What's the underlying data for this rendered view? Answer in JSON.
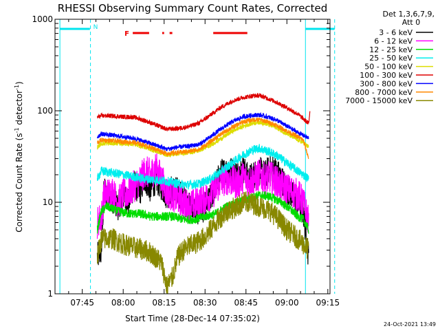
{
  "chart_data": {
    "type": "line",
    "title": "RHESSI Observing Summary Count Rates, Corrected",
    "xlabel": "Start Time (28-Dec-14 07:35:02)",
    "ylabel_main": "Corrected Count Rate (s",
    "ylabel_sup1": "-1",
    "ylabel_mid": " detector",
    "ylabel_sup2": "-1",
    "ylabel_end": ")",
    "y_scale": "log",
    "ylim": [
      1,
      1000
    ],
    "y_ticks": [
      {
        "value": 1,
        "label": "1"
      },
      {
        "value": 10,
        "label": "10"
      },
      {
        "value": 100,
        "label": "100"
      },
      {
        "value": 1000,
        "label": "1000"
      }
    ],
    "x_ticks": [
      {
        "value": 465,
        "label": "07:45"
      },
      {
        "value": 480,
        "label": "08:00"
      },
      {
        "value": 495,
        "label": "08:15"
      },
      {
        "value": 510,
        "label": "08:30"
      },
      {
        "value": 525,
        "label": "08:45"
      },
      {
        "value": 540,
        "label": "09:00"
      },
      {
        "value": 555,
        "label": "09:15"
      }
    ],
    "legend": {
      "placement": "right",
      "header_line1": "Det 1,3,6,7,9,",
      "header_line2": "Att 0",
      "entries": [
        {
          "label": "3 - 6 keV",
          "color": "#000000"
        },
        {
          "label": "6 - 12 keV",
          "color": "#ff00ff"
        },
        {
          "label": "12 - 25 keV",
          "color": "#00dd00"
        },
        {
          "label": "25 - 50 keV",
          "color": "#00eeee"
        },
        {
          "label": "50 - 100 keV",
          "color": "#dddd00"
        },
        {
          "label": "100 - 300 keV",
          "color": "#dd0000"
        },
        {
          "label": "300 - 800 keV",
          "color": "#0000ff"
        },
        {
          "label": "800 - 7000 keV",
          "color": "#ff8800"
        },
        {
          "label": "7000 - 15000 keV",
          "color": "#888800"
        }
      ]
    },
    "night_marker": {
      "label": "N",
      "color": "#00e5ee",
      "segments": [
        [
          456.8,
          468.0
        ],
        [
          555.5,
          555.6
        ]
      ],
      "bands": [
        {
          "solid_x": 456.8,
          "dashed_x": 468.0,
          "bar": [
            456.8,
            467.8
          ]
        },
        {
          "solid_x": 546.8,
          "dashed_x": 557.5,
          "bar": [
            546.8,
            557.5
          ]
        }
      ]
    },
    "flare_marker": {
      "label": "F",
      "color": "#ee0000",
      "segments": [
        [
          483.5,
          489.5
        ],
        [
          494.3,
          495.0
        ],
        [
          497.0,
          498.0
        ],
        [
          513.0,
          525.5
        ]
      ]
    },
    "series": [
      {
        "name": "3 - 6 keV",
        "color": "#000000",
        "x0": 470.5,
        "x1": 548.0,
        "points": [
          [
            470.5,
            2.5
          ],
          [
            472,
            3.0
          ],
          [
            473,
            14
          ],
          [
            476,
            11
          ],
          [
            478,
            9
          ],
          [
            480,
            12
          ],
          [
            482,
            10
          ],
          [
            484,
            16
          ],
          [
            486,
            13
          ],
          [
            488,
            18
          ],
          [
            490,
            14
          ],
          [
            492,
            18
          ],
          [
            494,
            15
          ],
          [
            496,
            12
          ],
          [
            498,
            14
          ],
          [
            500,
            13
          ],
          [
            502,
            11
          ],
          [
            504,
            9
          ],
          [
            506,
            8.5
          ],
          [
            508,
            8
          ],
          [
            510,
            9
          ],
          [
            512,
            11
          ],
          [
            514,
            16
          ],
          [
            516,
            21
          ],
          [
            518,
            22
          ],
          [
            520,
            22
          ],
          [
            522,
            20
          ],
          [
            524,
            23
          ],
          [
            526,
            18
          ],
          [
            528,
            20
          ],
          [
            530,
            22
          ],
          [
            532,
            20
          ],
          [
            534,
            24
          ],
          [
            536,
            22
          ],
          [
            538,
            18
          ],
          [
            540,
            14
          ],
          [
            542,
            12
          ],
          [
            544,
            10
          ],
          [
            546,
            8
          ],
          [
            548,
            2.5
          ]
        ],
        "noise": 0.16
      },
      {
        "name": "6 - 12 keV",
        "color": "#ff00ff",
        "x0": 470.5,
        "x1": 548.0,
        "points": [
          [
            470.5,
            6
          ],
          [
            472,
            7
          ],
          [
            473,
            12
          ],
          [
            476,
            13
          ],
          [
            478,
            10
          ],
          [
            480,
            12
          ],
          [
            482,
            13
          ],
          [
            484,
            15
          ],
          [
            486,
            17
          ],
          [
            488,
            22
          ],
          [
            490,
            20
          ],
          [
            492,
            24
          ],
          [
            494,
            18
          ],
          [
            496,
            13
          ],
          [
            498,
            12
          ],
          [
            500,
            11
          ],
          [
            502,
            10
          ],
          [
            504,
            9
          ],
          [
            506,
            9.5
          ],
          [
            508,
            10
          ],
          [
            510,
            11
          ],
          [
            512,
            12
          ],
          [
            514,
            14
          ],
          [
            516,
            17
          ],
          [
            518,
            18
          ],
          [
            520,
            17
          ],
          [
            522,
            16
          ],
          [
            524,
            19
          ],
          [
            526,
            17
          ],
          [
            528,
            18
          ],
          [
            530,
            20
          ],
          [
            532,
            18
          ],
          [
            534,
            19
          ],
          [
            536,
            17
          ],
          [
            538,
            15
          ],
          [
            540,
            14
          ],
          [
            542,
            13
          ],
          [
            544,
            12
          ],
          [
            546,
            10
          ],
          [
            548,
            6
          ]
        ],
        "noise": 0.18
      },
      {
        "name": "12 - 25 keV",
        "color": "#00dd00",
        "x0": 470.5,
        "x1": 548.0,
        "points": [
          [
            470.5,
            5
          ],
          [
            472,
            8
          ],
          [
            474,
            9
          ],
          [
            478,
            8
          ],
          [
            482,
            7.5
          ],
          [
            486,
            7.5
          ],
          [
            490,
            7
          ],
          [
            494,
            7
          ],
          [
            498,
            7
          ],
          [
            502,
            6.5
          ],
          [
            506,
            6.5
          ],
          [
            510,
            7
          ],
          [
            514,
            7.5
          ],
          [
            518,
            9
          ],
          [
            522,
            10
          ],
          [
            526,
            11
          ],
          [
            530,
            12
          ],
          [
            534,
            11.5
          ],
          [
            538,
            10
          ],
          [
            542,
            8
          ],
          [
            544,
            7
          ],
          [
            546,
            6.5
          ],
          [
            548,
            5
          ]
        ],
        "noise": 0.05
      },
      {
        "name": "25 - 50 keV",
        "color": "#00eeee",
        "x0": 470.5,
        "x1": 548.0,
        "points": [
          [
            470.5,
            18
          ],
          [
            472,
            22
          ],
          [
            476,
            21
          ],
          [
            480,
            20
          ],
          [
            484,
            19
          ],
          [
            488,
            18
          ],
          [
            492,
            17.5
          ],
          [
            496,
            17
          ],
          [
            500,
            16
          ],
          [
            504,
            15.5
          ],
          [
            508,
            16
          ],
          [
            512,
            18
          ],
          [
            516,
            22
          ],
          [
            520,
            27
          ],
          [
            524,
            33
          ],
          [
            528,
            38
          ],
          [
            530,
            39
          ],
          [
            532,
            37
          ],
          [
            536,
            33
          ],
          [
            540,
            27
          ],
          [
            544,
            22
          ],
          [
            546,
            20
          ],
          [
            548,
            18
          ]
        ],
        "noise": 0.05
      },
      {
        "name": "50 - 100 keV",
        "color": "#dddd00",
        "x0": 470.5,
        "x1": 548.0,
        "points": [
          [
            470.5,
            40
          ],
          [
            472,
            44
          ],
          [
            476,
            44
          ],
          [
            480,
            44
          ],
          [
            484,
            43
          ],
          [
            488,
            40
          ],
          [
            492,
            36
          ],
          [
            496,
            33
          ],
          [
            500,
            34
          ],
          [
            504,
            35
          ],
          [
            508,
            37
          ],
          [
            512,
            42
          ],
          [
            516,
            50
          ],
          [
            520,
            60
          ],
          [
            524,
            68
          ],
          [
            528,
            74
          ],
          [
            530,
            75
          ],
          [
            532,
            73
          ],
          [
            536,
            66
          ],
          [
            540,
            56
          ],
          [
            544,
            48
          ],
          [
            546,
            45
          ],
          [
            548,
            40
          ]
        ],
        "noise": 0.025
      },
      {
        "name": "100 - 300 keV",
        "color": "#dd0000",
        "x0": 470.5,
        "x1": 548.5,
        "points": [
          [
            470.5,
            85
          ],
          [
            472,
            88
          ],
          [
            476,
            88
          ],
          [
            480,
            86
          ],
          [
            484,
            85
          ],
          [
            488,
            78
          ],
          [
            492,
            70
          ],
          [
            496,
            63
          ],
          [
            500,
            64
          ],
          [
            504,
            67
          ],
          [
            508,
            74
          ],
          [
            512,
            90
          ],
          [
            516,
            110
          ],
          [
            520,
            128
          ],
          [
            524,
            140
          ],
          [
            528,
            146
          ],
          [
            530,
            147
          ],
          [
            532,
            140
          ],
          [
            536,
            125
          ],
          [
            540,
            108
          ],
          [
            544,
            92
          ],
          [
            546,
            82
          ],
          [
            548,
            72
          ],
          [
            548.5,
            105
          ]
        ],
        "noise": 0.025
      },
      {
        "name": "300 - 800 keV",
        "color": "#0000ff",
        "x0": 470.5,
        "x1": 548.0,
        "points": [
          [
            470.5,
            52
          ],
          [
            472,
            56
          ],
          [
            476,
            54
          ],
          [
            480,
            52
          ],
          [
            484,
            50
          ],
          [
            488,
            46
          ],
          [
            492,
            42
          ],
          [
            496,
            38
          ],
          [
            500,
            40
          ],
          [
            504,
            41
          ],
          [
            508,
            43
          ],
          [
            512,
            52
          ],
          [
            516,
            64
          ],
          [
            520,
            76
          ],
          [
            524,
            86
          ],
          [
            528,
            90
          ],
          [
            530,
            90
          ],
          [
            532,
            87
          ],
          [
            536,
            80
          ],
          [
            540,
            68
          ],
          [
            544,
            58
          ],
          [
            546,
            54
          ],
          [
            548,
            50
          ]
        ],
        "noise": 0.025
      },
      {
        "name": "800 - 7000 keV",
        "color": "#ff8800",
        "x0": 470.5,
        "x1": 548.0,
        "points": [
          [
            470.5,
            45
          ],
          [
            472,
            48
          ],
          [
            476,
            47
          ],
          [
            480,
            46
          ],
          [
            484,
            45
          ],
          [
            488,
            42
          ],
          [
            492,
            38
          ],
          [
            496,
            34
          ],
          [
            500,
            35
          ],
          [
            504,
            36
          ],
          [
            508,
            38
          ],
          [
            512,
            46
          ],
          [
            516,
            56
          ],
          [
            520,
            66
          ],
          [
            524,
            76
          ],
          [
            528,
            80
          ],
          [
            530,
            80
          ],
          [
            532,
            77
          ],
          [
            536,
            70
          ],
          [
            540,
            60
          ],
          [
            544,
            52
          ],
          [
            546,
            48
          ],
          [
            548,
            30
          ]
        ],
        "noise": 0.025
      },
      {
        "name": "7000 - 15000 keV",
        "color": "#888800",
        "x0": 470.5,
        "x1": 548.0,
        "points": [
          [
            470.5,
            2.5
          ],
          [
            472,
            4
          ],
          [
            476,
            4
          ],
          [
            480,
            3.5
          ],
          [
            484,
            3.2
          ],
          [
            488,
            3.0
          ],
          [
            490,
            2.8
          ],
          [
            492,
            2.5
          ],
          [
            494,
            2.2
          ],
          [
            496,
            1.2
          ],
          [
            498,
            1.5
          ],
          [
            500,
            2.5
          ],
          [
            502,
            3.0
          ],
          [
            504,
            3.3
          ],
          [
            506,
            3.5
          ],
          [
            508,
            3.8
          ],
          [
            510,
            4.2
          ],
          [
            512,
            5
          ],
          [
            514,
            6
          ],
          [
            516,
            7
          ],
          [
            518,
            8
          ],
          [
            520,
            8.5
          ],
          [
            522,
            9
          ],
          [
            524,
            10
          ],
          [
            526,
            10
          ],
          [
            528,
            9.5
          ],
          [
            530,
            9
          ],
          [
            532,
            8.5
          ],
          [
            534,
            8
          ],
          [
            536,
            7
          ],
          [
            538,
            6
          ],
          [
            540,
            5
          ],
          [
            542,
            4.5
          ],
          [
            544,
            4
          ],
          [
            546,
            3.5
          ],
          [
            548,
            3
          ]
        ],
        "noise": 0.12
      }
    ]
  },
  "footer": {
    "timestamp": "24-Oct-2021 13:49"
  }
}
